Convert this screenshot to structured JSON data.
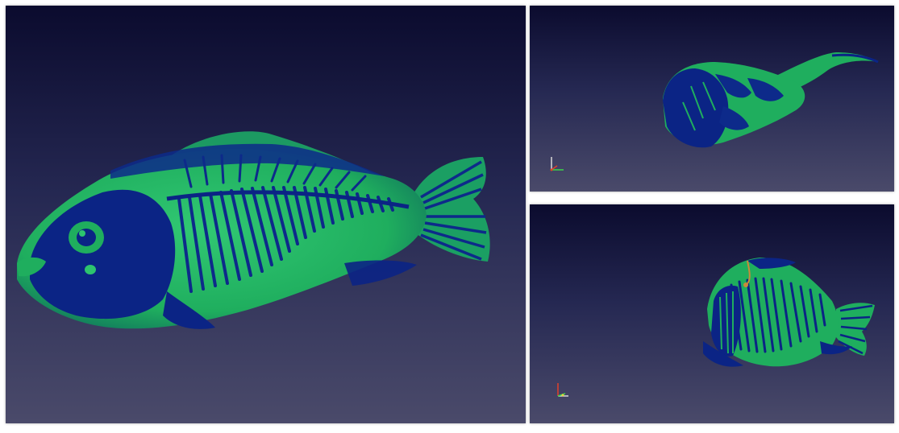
{
  "viewports": [
    {
      "id": "main",
      "view": "side"
    },
    {
      "id": "top",
      "view": "rear-oblique"
    },
    {
      "id": "bottom",
      "view": "front-oblique"
    }
  ],
  "colors": {
    "background_top": "#0b0b2e",
    "background_bottom": "#4a4a6a",
    "surface_green": "#1fae5e",
    "surface_light_green": "#2dc46e",
    "bone_blue": "#0d2a8a",
    "bone_dark_blue": "#071c6e",
    "axis_x": "#e0402a",
    "axis_y": "#3ad64a",
    "axis_z": "#d8d8d8"
  },
  "icons": [
    "orientation-axes-icon"
  ]
}
